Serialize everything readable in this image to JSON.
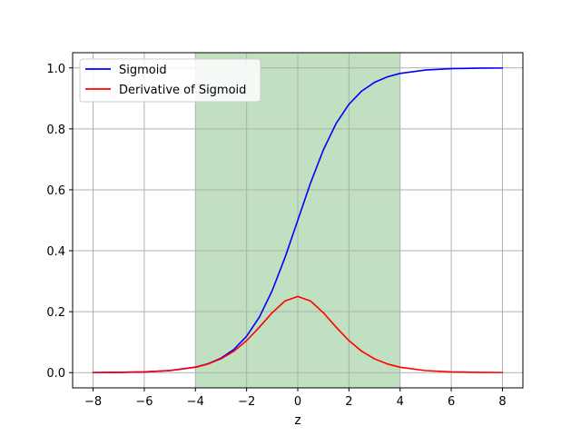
{
  "chart_data": {
    "type": "line",
    "title": "",
    "xlabel": "z",
    "ylabel": "",
    "xlim": [
      -8.8,
      8.8
    ],
    "ylim": [
      -0.05,
      1.05
    ],
    "xticks": [
      -8,
      -6,
      -4,
      -2,
      0,
      2,
      4,
      6,
      8
    ],
    "xtick_labels": [
      "−8",
      "−6",
      "−4",
      "−2",
      "0",
      "2",
      "4",
      "6",
      "8"
    ],
    "yticks": [
      0.0,
      0.2,
      0.4,
      0.6,
      0.8,
      1.0
    ],
    "ytick_labels": [
      "0.0",
      "0.2",
      "0.4",
      "0.6",
      "0.8",
      "1.0"
    ],
    "grid": true,
    "legend_position": "top-left",
    "shaded_region": {
      "x": [
        -4,
        4
      ],
      "color": "#c1dfc1"
    },
    "x": [
      -8,
      -7,
      -6,
      -5,
      -4,
      -3.5,
      -3,
      -2.5,
      -2,
      -1.5,
      -1,
      -0.5,
      0,
      0.5,
      1,
      1.5,
      2,
      2.5,
      3,
      3.5,
      4,
      5,
      6,
      7,
      8
    ],
    "series": [
      {
        "name": "Sigmoid",
        "color": "#0000ff",
        "values": [
          0.0003,
          0.0009,
          0.0025,
          0.0067,
          0.018,
          0.0293,
          0.0474,
          0.0759,
          0.1192,
          0.1824,
          0.2689,
          0.3775,
          0.5,
          0.6225,
          0.7311,
          0.8176,
          0.8808,
          0.9241,
          0.9526,
          0.9707,
          0.982,
          0.9933,
          0.9975,
          0.9991,
          0.9997
        ]
      },
      {
        "name": "Derivative of Sigmoid",
        "color": "#ff0000",
        "values": [
          0.0003,
          0.0009,
          0.0025,
          0.0066,
          0.0177,
          0.0285,
          0.0452,
          0.0701,
          0.105,
          0.1491,
          0.1966,
          0.235,
          0.25,
          0.235,
          0.1966,
          0.1491,
          0.105,
          0.0701,
          0.0452,
          0.0285,
          0.0177,
          0.0066,
          0.0025,
          0.0009,
          0.0003
        ]
      }
    ]
  }
}
